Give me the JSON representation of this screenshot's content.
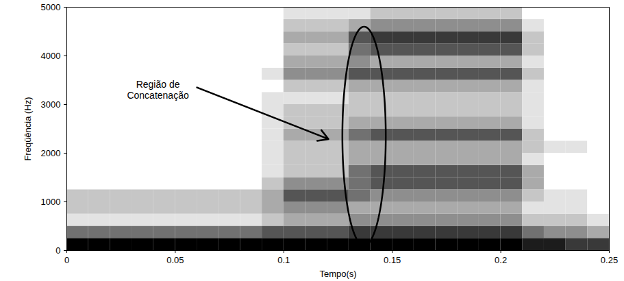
{
  "chart_data": {
    "type": "heatmap",
    "xlabel": "Tempo(s)",
    "ylabel": "Freqüência (Hz)",
    "xlim": [
      0,
      0.25
    ],
    "xticks": [
      0,
      0.05,
      0.1,
      0.15,
      0.2,
      0.25
    ],
    "ylim": [
      0,
      5000
    ],
    "yticks": [
      0,
      1000,
      2000,
      3000,
      4000,
      5000
    ],
    "x_bins": [
      0,
      0.01,
      0.02,
      0.03,
      0.04,
      0.05,
      0.06,
      0.07,
      0.08,
      0.09,
      0.1,
      0.11,
      0.12,
      0.13,
      0.14,
      0.15,
      0.16,
      0.17,
      0.18,
      0.19,
      0.2,
      0.21,
      0.22,
      0.23,
      0.24,
      0.25
    ],
    "y_bins": [
      0,
      250,
      500,
      750,
      1000,
      1250,
      1500,
      1750,
      2000,
      2250,
      2500,
      2750,
      3000,
      3250,
      3500,
      3750,
      4000,
      4250,
      4500,
      4750,
      5000
    ],
    "zlim": [
      0,
      9
    ],
    "z": [
      [
        9,
        9,
        9,
        9,
        9,
        9,
        9,
        9,
        9,
        9,
        9,
        9,
        9,
        9,
        9,
        9,
        9,
        9,
        9,
        9,
        9,
        8,
        8,
        7,
        7
      ],
      [
        5,
        5,
        5,
        5,
        5,
        5,
        5,
        5,
        5,
        6,
        6,
        6,
        6,
        7,
        7,
        7,
        7,
        7,
        7,
        7,
        7,
        5,
        4,
        4,
        3
      ],
      [
        1,
        1,
        1,
        1,
        1,
        1,
        1,
        1,
        1,
        2,
        3,
        3,
        3,
        4,
        4,
        4,
        4,
        4,
        4,
        4,
        4,
        2,
        2,
        2,
        1
      ],
      [
        2,
        2,
        2,
        2,
        2,
        2,
        2,
        2,
        2,
        3,
        4,
        4,
        4,
        3,
        3,
        3,
        3,
        3,
        3,
        3,
        3,
        1,
        1,
        1,
        0
      ],
      [
        2,
        2,
        2,
        2,
        2,
        2,
        2,
        2,
        2,
        3,
        6,
        6,
        6,
        5,
        4,
        4,
        4,
        4,
        4,
        4,
        4,
        2,
        1,
        1,
        0
      ],
      [
        0,
        0,
        0,
        0,
        0,
        0,
        0,
        0,
        0,
        2,
        4,
        4,
        4,
        5,
        6,
        6,
        6,
        6,
        6,
        6,
        6,
        3,
        0,
        0,
        0
      ],
      [
        0,
        0,
        0,
        0,
        0,
        0,
        0,
        0,
        0,
        1,
        2,
        2,
        2,
        5,
        6,
        6,
        6,
        6,
        6,
        6,
        6,
        3,
        0,
        0,
        0
      ],
      [
        0,
        0,
        0,
        0,
        0,
        0,
        0,
        0,
        0,
        1,
        2,
        2,
        2,
        3,
        3,
        3,
        3,
        3,
        3,
        3,
        3,
        1,
        0,
        0,
        0
      ],
      [
        0,
        0,
        0,
        0,
        0,
        0,
        0,
        0,
        0,
        1,
        2,
        2,
        2,
        3,
        3,
        3,
        3,
        3,
        3,
        3,
        3,
        2,
        1,
        1,
        0
      ],
      [
        0,
        0,
        0,
        0,
        0,
        0,
        0,
        0,
        0,
        1,
        3,
        3,
        3,
        5,
        6,
        6,
        6,
        6,
        6,
        6,
        6,
        2,
        0,
        0,
        0
      ],
      [
        0,
        0,
        0,
        0,
        0,
        0,
        0,
        0,
        0,
        1,
        2,
        2,
        2,
        3,
        3,
        3,
        3,
        3,
        3,
        3,
        3,
        1,
        0,
        0,
        0
      ],
      [
        0,
        0,
        0,
        0,
        0,
        0,
        0,
        0,
        0,
        1,
        2,
        2,
        2,
        2,
        2,
        2,
        2,
        2,
        2,
        2,
        2,
        1,
        0,
        0,
        0
      ],
      [
        0,
        0,
        0,
        0,
        0,
        0,
        0,
        0,
        0,
        1,
        1,
        1,
        1,
        2,
        2,
        2,
        2,
        2,
        2,
        2,
        2,
        1,
        0,
        0,
        0
      ],
      [
        0,
        0,
        0,
        0,
        0,
        0,
        0,
        0,
        0,
        0,
        2,
        2,
        2,
        3,
        3,
        3,
        3,
        3,
        3,
        3,
        3,
        1,
        0,
        0,
        0
      ],
      [
        0,
        0,
        0,
        0,
        0,
        0,
        0,
        0,
        0,
        1,
        4,
        4,
        4,
        6,
        6,
        6,
        6,
        6,
        6,
        6,
        6,
        2,
        0,
        0,
        0
      ],
      [
        0,
        0,
        0,
        0,
        0,
        0,
        0,
        0,
        0,
        0,
        3,
        3,
        3,
        4,
        3,
        3,
        3,
        3,
        3,
        3,
        3,
        1,
        0,
        0,
        0
      ],
      [
        0,
        0,
        0,
        0,
        0,
        0,
        0,
        0,
        0,
        0,
        2,
        2,
        2,
        5,
        6,
        6,
        6,
        6,
        6,
        6,
        6,
        2,
        0,
        0,
        0
      ],
      [
        0,
        0,
        0,
        0,
        0,
        0,
        0,
        0,
        0,
        0,
        3,
        3,
        3,
        6,
        7,
        7,
        7,
        7,
        7,
        7,
        7,
        2,
        0,
        0,
        0
      ],
      [
        0,
        0,
        0,
        0,
        0,
        0,
        0,
        0,
        0,
        0,
        2,
        2,
        2,
        3,
        4,
        4,
        4,
        4,
        4,
        4,
        4,
        1,
        0,
        0,
        0
      ],
      [
        0,
        0,
        0,
        0,
        0,
        0,
        0,
        0,
        0,
        0,
        1,
        1,
        1,
        1,
        2,
        2,
        2,
        2,
        2,
        2,
        2,
        0,
        0,
        0,
        0
      ]
    ],
    "annotation": {
      "text": "Região de\nConcatenação",
      "x": 0.042,
      "y": 3300,
      "arrow_from": [
        0.06,
        3350
      ],
      "arrow_to": [
        0.1206,
        2290
      ]
    },
    "ellipse": {
      "x": [
        0.127,
        0.147
      ],
      "y": [
        100,
        4600
      ]
    }
  }
}
